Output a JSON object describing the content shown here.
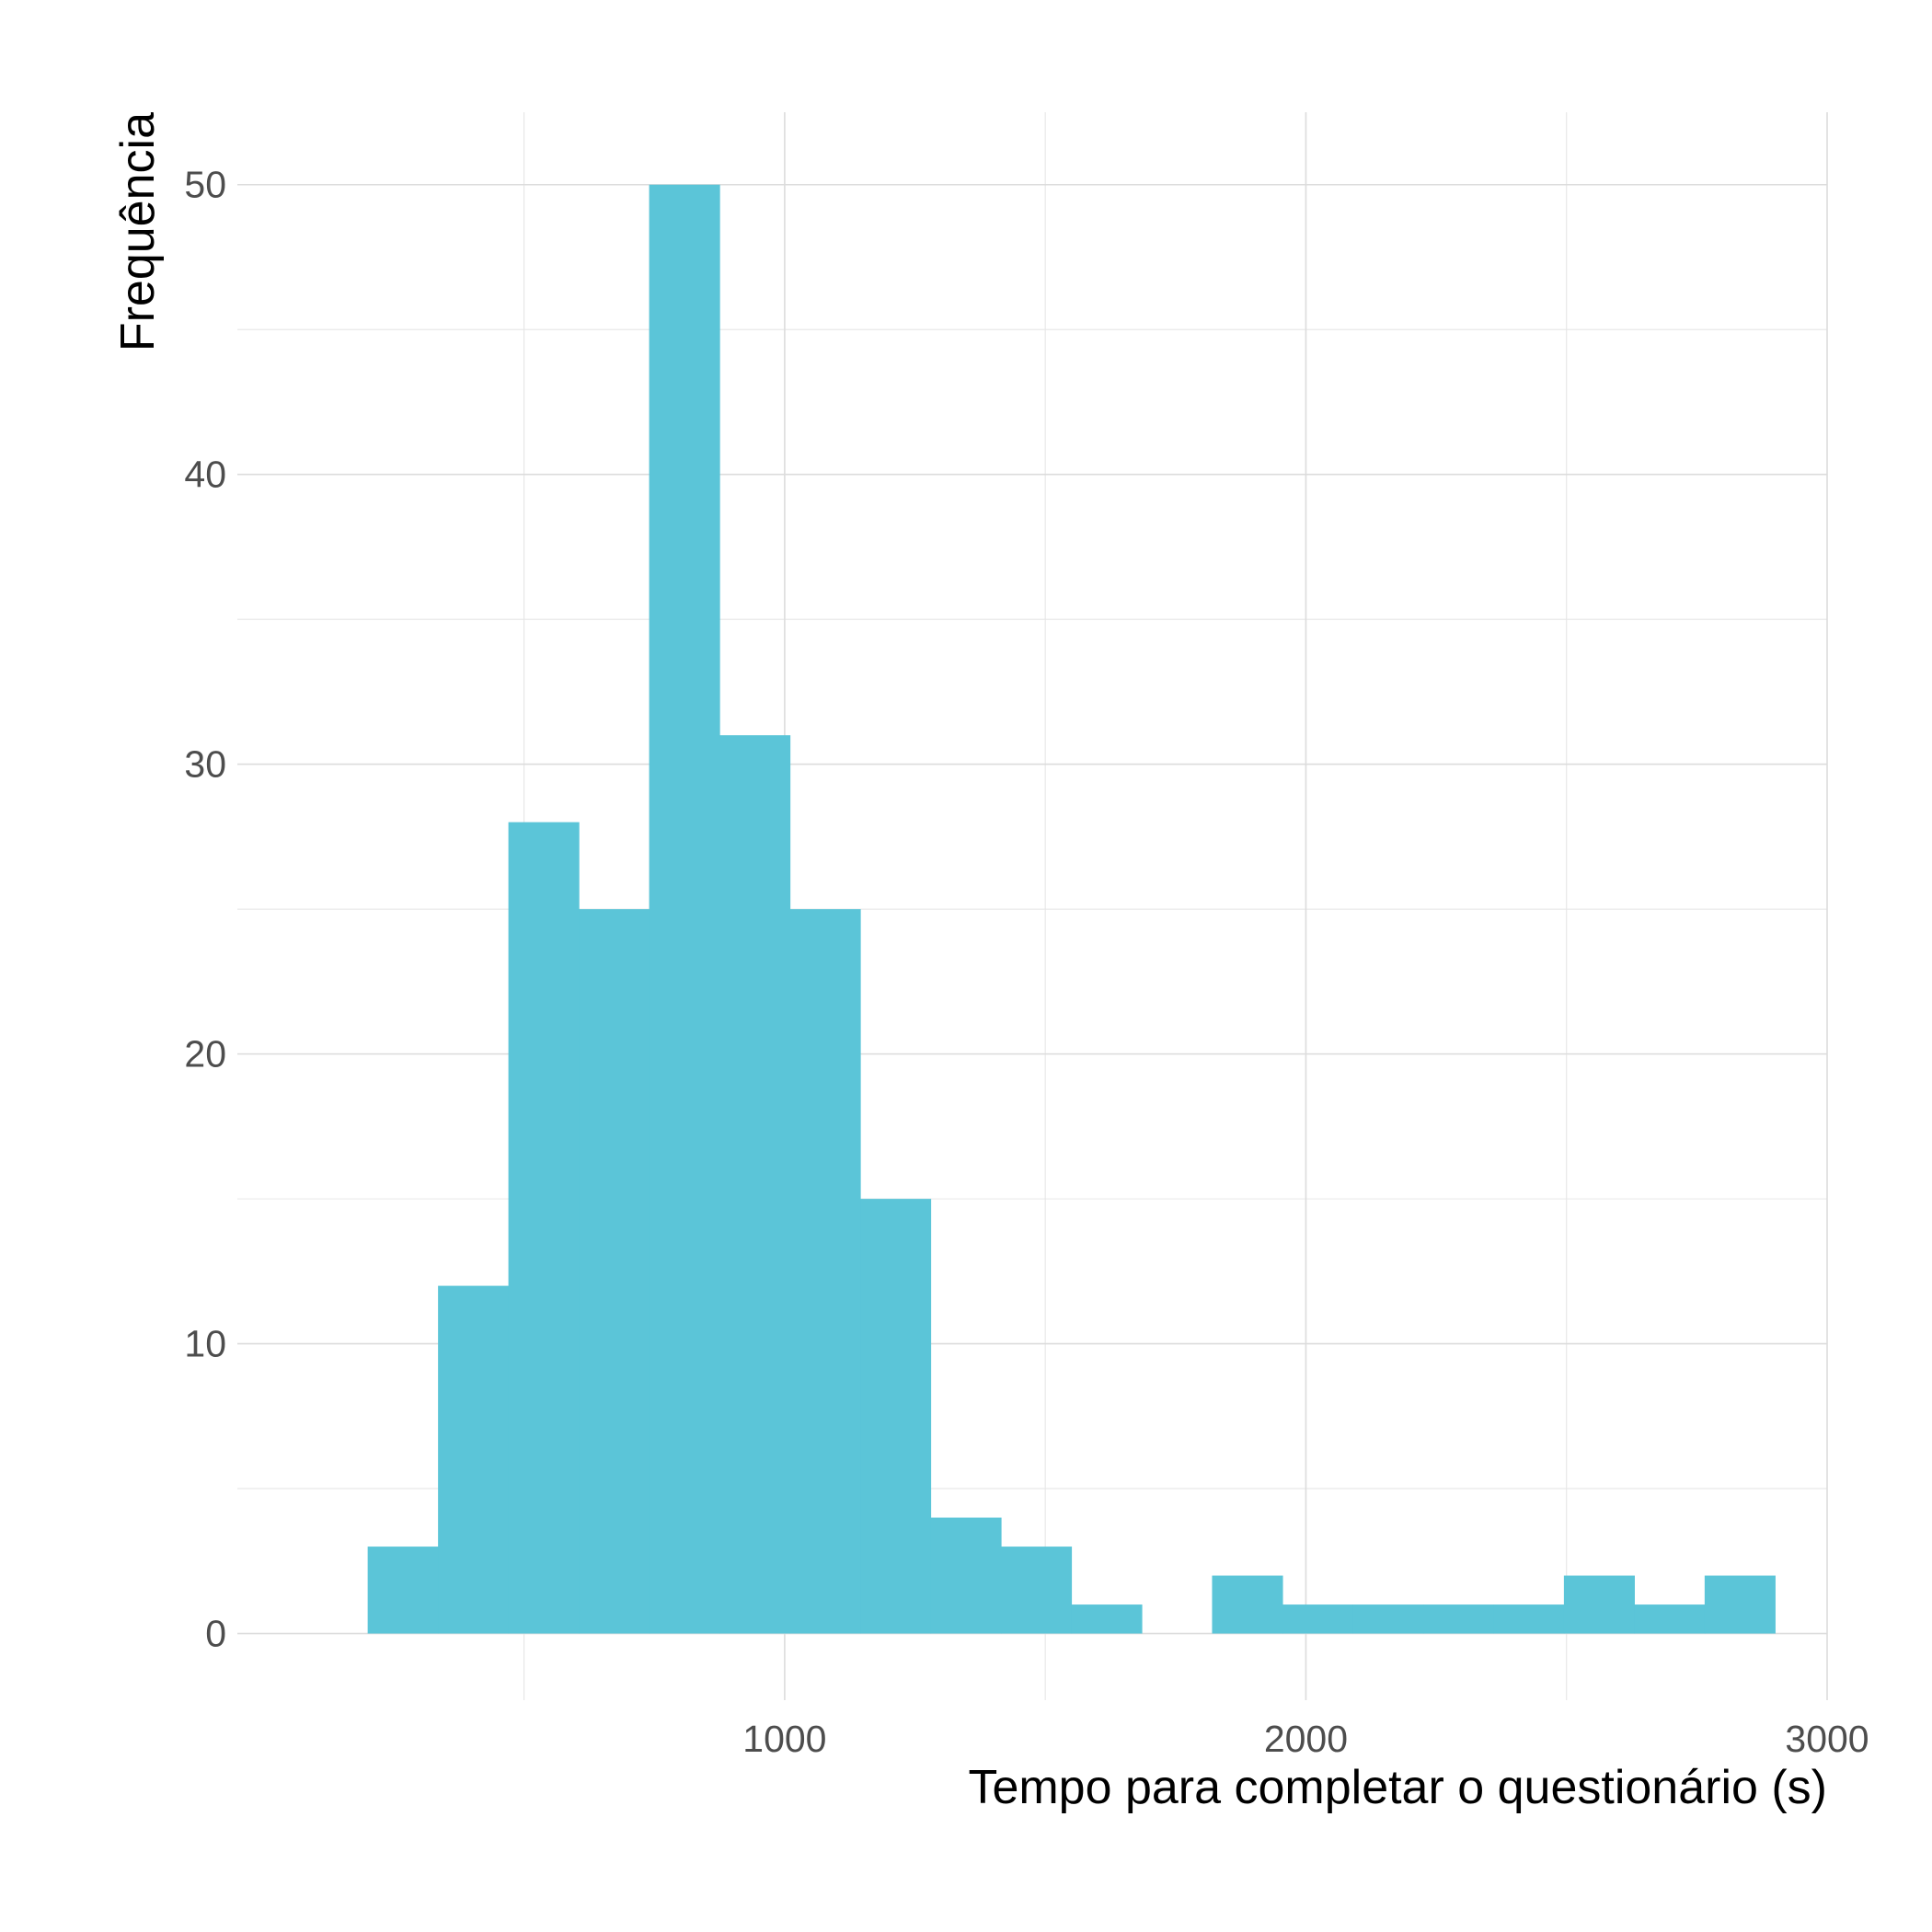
{
  "chart_data": {
    "type": "histogram",
    "title": "",
    "xlabel": "Tempo para completar o questionário (s)",
    "ylabel": "Frequência",
    "bar_color": "#5bc5d8",
    "background": "#ffffff",
    "grid": true,
    "legend": "none",
    "xlim": [
      -50,
      3000
    ],
    "ylim": [
      -2.3,
      52.5
    ],
    "x_ticks": [
      1000,
      2000,
      3000
    ],
    "x_minor_ticks": [
      500,
      1500,
      2500
    ],
    "y_ticks": [
      0,
      10,
      20,
      30,
      40,
      50
    ],
    "y_minor_ticks": [
      5,
      15,
      25,
      35,
      45
    ],
    "bins": [
      {
        "x0": 200,
        "x1": 335,
        "count": 3
      },
      {
        "x0": 335,
        "x1": 470,
        "count": 12
      },
      {
        "x0": 470,
        "x1": 605,
        "count": 28
      },
      {
        "x0": 605,
        "x1": 740,
        "count": 25
      },
      {
        "x0": 740,
        "x1": 875,
        "count": 50
      },
      {
        "x0": 875,
        "x1": 1010,
        "count": 31
      },
      {
        "x0": 1010,
        "x1": 1145,
        "count": 25
      },
      {
        "x0": 1145,
        "x1": 1280,
        "count": 15
      },
      {
        "x0": 1280,
        "x1": 1415,
        "count": 4
      },
      {
        "x0": 1415,
        "x1": 1550,
        "count": 3
      },
      {
        "x0": 1550,
        "x1": 1685,
        "count": 1
      },
      {
        "x0": 1685,
        "x1": 1820,
        "count": 0
      },
      {
        "x0": 1820,
        "x1": 1955,
        "count": 2
      },
      {
        "x0": 1955,
        "x1": 2090,
        "count": 1
      },
      {
        "x0": 2090,
        "x1": 2225,
        "count": 1
      },
      {
        "x0": 2225,
        "x1": 2360,
        "count": 1
      },
      {
        "x0": 2360,
        "x1": 2495,
        "count": 1
      },
      {
        "x0": 2495,
        "x1": 2630,
        "count": 2
      },
      {
        "x0": 2630,
        "x1": 2765,
        "count": 1
      },
      {
        "x0": 2765,
        "x1": 2900,
        "count": 2
      }
    ]
  }
}
